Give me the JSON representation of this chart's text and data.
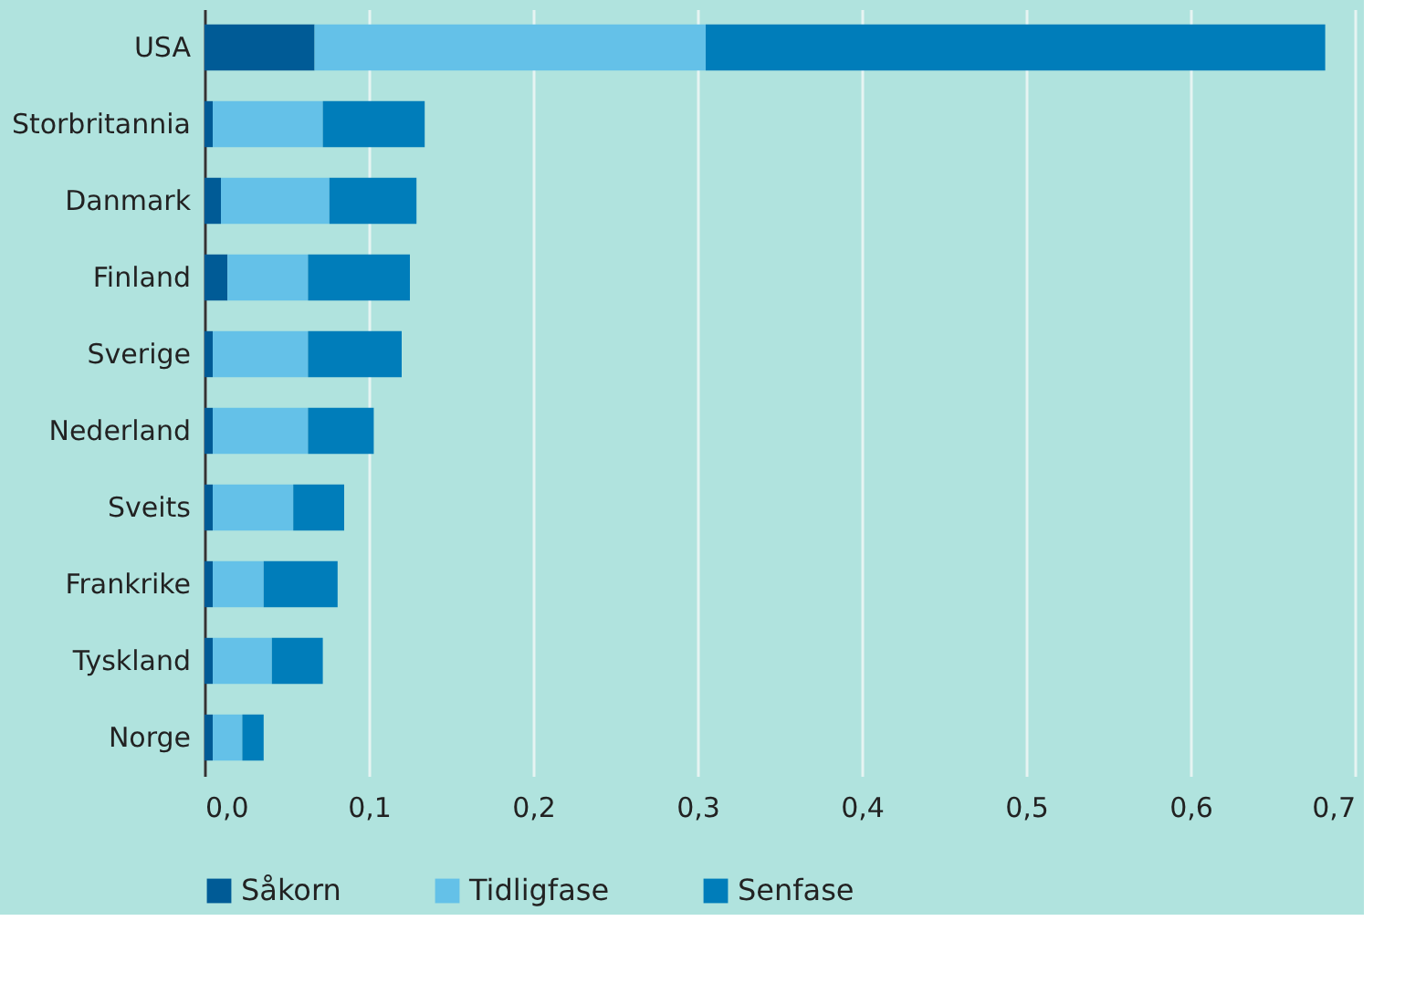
{
  "chart_data": {
    "type": "bar",
    "orientation": "horizontal",
    "stacked": true,
    "categories": [
      "USA",
      "Storbritannia",
      "Danmark",
      "Finland",
      "Sverige",
      "Nederland",
      "Sveits",
      "Frankrike",
      "Tyskland",
      "Norge"
    ],
    "series": [
      {
        "name": "Såkorn",
        "color": "#005b96",
        "values": [
          0.067,
          0.005,
          0.01,
          0.014,
          0.005,
          0.005,
          0.005,
          0.005,
          0.005,
          0.005
        ]
      },
      {
        "name": "Tidligfase",
        "color": "#64c1e8",
        "values": [
          0.238,
          0.067,
          0.066,
          0.049,
          0.058,
          0.058,
          0.049,
          0.031,
          0.036,
          0.018
        ]
      },
      {
        "name": "Senfase",
        "color": "#007dba",
        "values": [
          0.377,
          0.062,
          0.053,
          0.062,
          0.057,
          0.04,
          0.031,
          0.045,
          0.031,
          0.013
        ]
      }
    ],
    "xlim": [
      0,
      0.7
    ],
    "xticks": [
      {
        "value": 0,
        "label": "0,0"
      },
      {
        "value": 0.1,
        "label": "0,1"
      },
      {
        "value": 0.2,
        "label": "0,2"
      },
      {
        "value": 0.3,
        "label": "0,3"
      },
      {
        "value": 0.4,
        "label": "0,4"
      },
      {
        "value": 0.5,
        "label": "0,5"
      },
      {
        "value": 0.6,
        "label": "0,6"
      },
      {
        "value": 0.7,
        "label": "0,7"
      }
    ],
    "grid": "x",
    "legend": "bottom left"
  }
}
